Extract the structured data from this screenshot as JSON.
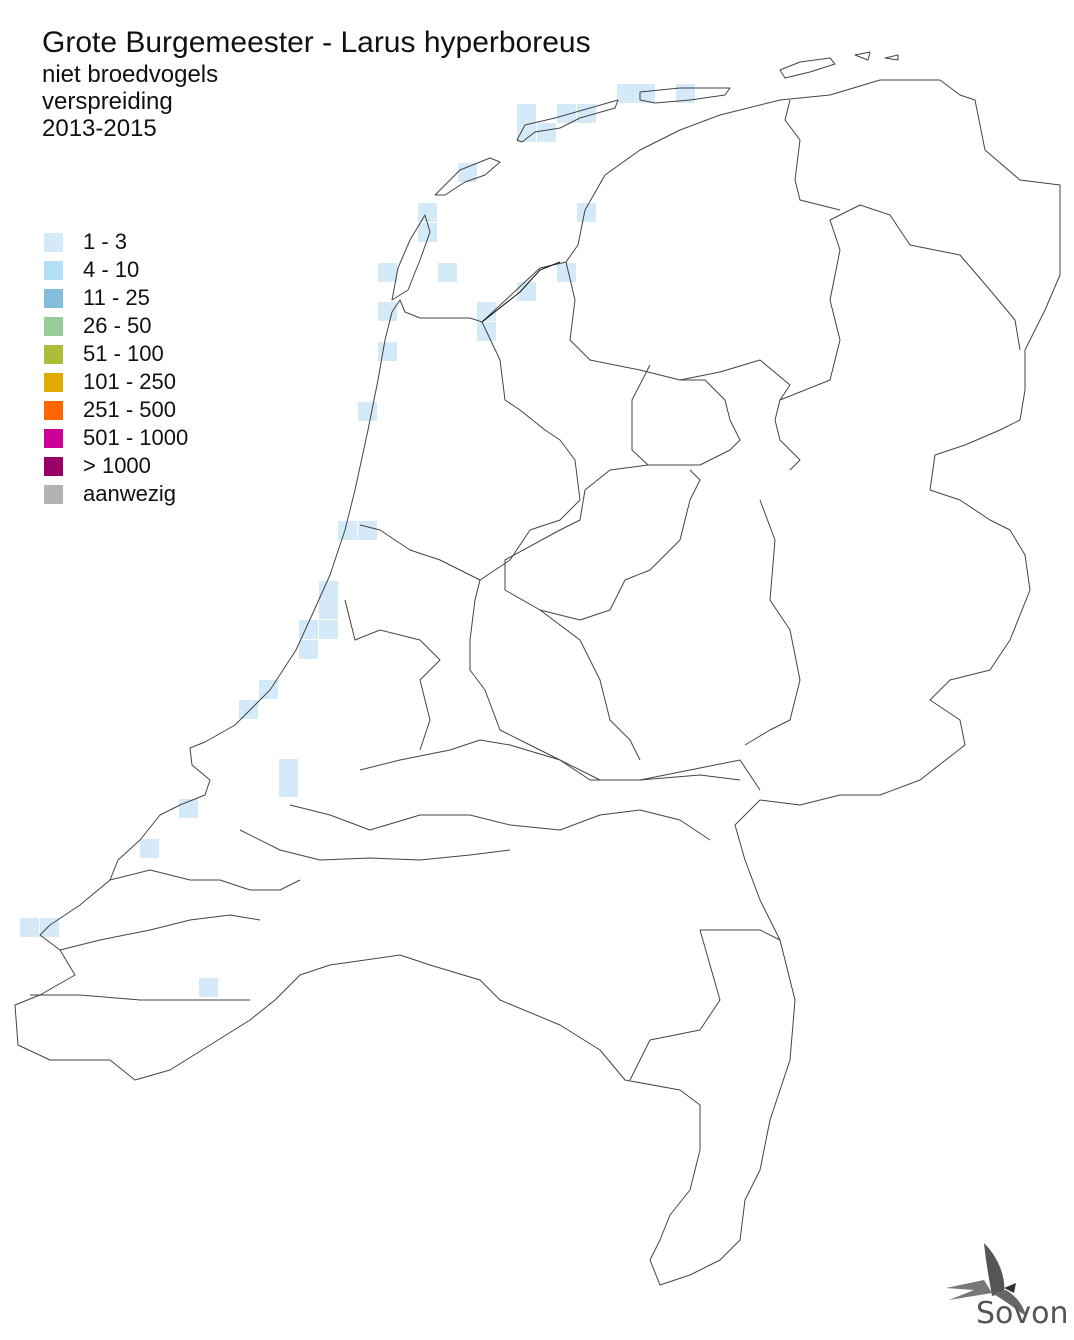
{
  "header": {
    "title": "Grote Burgemeester - Larus hyperboreus",
    "subtitle_1": "niet broedvogels",
    "subtitle_2": "verspreiding",
    "subtitle_3": "2013-2015"
  },
  "legend": {
    "items": [
      {
        "label": "1 - 3",
        "color": "#d4eaf8"
      },
      {
        "label": "4 - 10",
        "color": "#b3e0f7"
      },
      {
        "label": "11 - 25",
        "color": "#84bcdc"
      },
      {
        "label": "26 - 50",
        "color": "#98cb98"
      },
      {
        "label": "51 - 100",
        "color": "#aebd37"
      },
      {
        "label": "101 - 250",
        "color": "#e0ab00"
      },
      {
        "label": "251 - 500",
        "color": "#ff6600"
      },
      {
        "label": "501 - 1000",
        "color": "#cc0099"
      },
      {
        "label": "> 1000",
        "color": "#990066"
      },
      {
        "label": "aanwezig",
        "color": "#b2b2b2"
      }
    ]
  },
  "map": {
    "observed_category": "1 - 3",
    "outline_color": "#333333"
  },
  "logo": {
    "text": "Sovon"
  }
}
